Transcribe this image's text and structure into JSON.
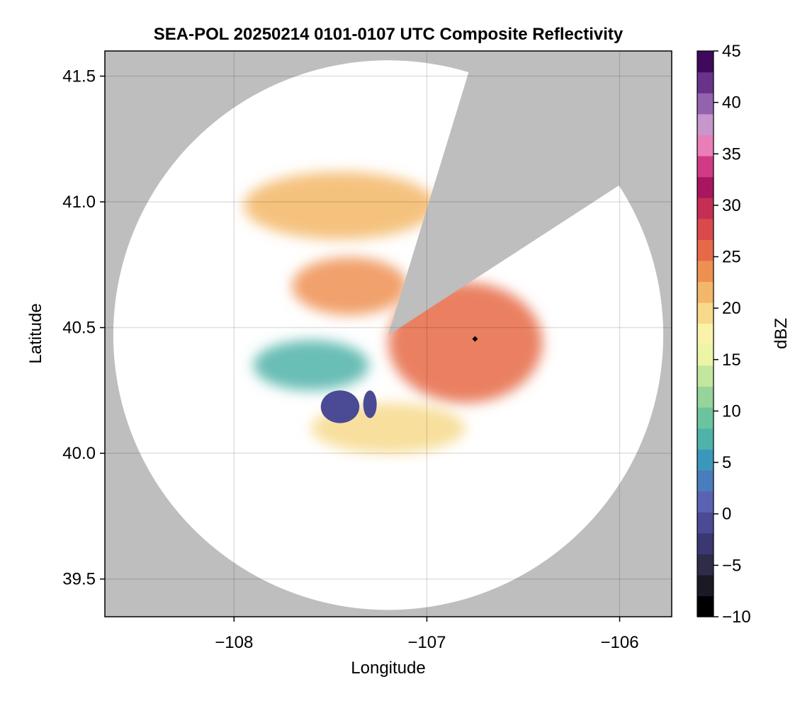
{
  "chart_data": {
    "type": "heatmap",
    "title": "SEA-POL 20250214 0101-0107 UTC Composite Reflectivity",
    "xlabel": "Longitude",
    "ylabel": "Latitude",
    "xlim": [
      -108.67,
      -105.73
    ],
    "ylim": [
      39.35,
      41.6
    ],
    "xticks": [
      -108,
      -107,
      -106
    ],
    "xtick_labels": [
      "−108",
      "−107",
      "−106"
    ],
    "yticks": [
      39.5,
      40.0,
      40.5,
      41.0,
      41.5
    ],
    "ytick_labels": [
      "39.5",
      "40.0",
      "40.5",
      "41.0",
      "41.5"
    ],
    "grid": true,
    "background_color": "#bebebe",
    "radar": {
      "center_lon": -107.2,
      "center_lat": 40.47,
      "range_deg_lat": 1.09,
      "range_deg_lon": 1.43,
      "blocked_sectors_deg_from_north": [
        [
          17,
          57
        ]
      ],
      "site_marker": {
        "lon": -106.75,
        "lat": 40.455
      }
    },
    "colorbar": {
      "label": "dBZ",
      "min": -10,
      "max": 45,
      "ticks": [
        -10,
        -5,
        0,
        5,
        10,
        15,
        20,
        25,
        30,
        35,
        40,
        45
      ],
      "tick_labels": [
        "−10",
        "−5",
        "0",
        "5",
        "10",
        "15",
        "20",
        "25",
        "30",
        "35",
        "40",
        "45"
      ],
      "colors": [
        "#000000",
        "#1b1a24",
        "#2f2c4a",
        "#3b3770",
        "#4a4a95",
        "#5b62b2",
        "#4a7dbd",
        "#3b98bc",
        "#4fb3a9",
        "#6cc49f",
        "#96d49a",
        "#c3e69e",
        "#eaf5a6",
        "#fbf2aa",
        "#f7d98c",
        "#f3b769",
        "#ee9052",
        "#e66a47",
        "#d94a4b",
        "#c52f55",
        "#a91660",
        "#d13b85",
        "#e97fb8",
        "#c796cc",
        "#9364ae",
        "#6a338b",
        "#3f0a5b"
      ]
    },
    "echo_regions": [
      {
        "name": "northern stratiform band",
        "dbz": 22,
        "lon_range": [
          -107.95,
          -106.95
        ],
        "lat_range": [
          40.85,
          41.12
        ]
      },
      {
        "name": "central band",
        "dbz": 24,
        "lon_range": [
          -107.7,
          -107.1
        ],
        "lat_range": [
          40.55,
          40.78
        ]
      },
      {
        "name": "eastern cell region",
        "dbz": 25,
        "lon_range": [
          -107.2,
          -106.4
        ],
        "lat_range": [
          40.2,
          40.68
        ]
      },
      {
        "name": "western weak echoes",
        "dbz": 8,
        "lon_range": [
          -107.9,
          -107.3
        ],
        "lat_range": [
          40.25,
          40.45
        ]
      },
      {
        "name": "southern band",
        "dbz": 20,
        "lon_range": [
          -107.6,
          -106.8
        ],
        "lat_range": [
          40.0,
          40.2
        ]
      },
      {
        "name": "low-reflectivity patch 1",
        "dbz": -1,
        "lon_range": [
          -107.55,
          -107.35
        ],
        "lat_range": [
          40.12,
          40.25
        ]
      },
      {
        "name": "low-reflectivity patch 2",
        "dbz": -1,
        "lon_range": [
          -107.33,
          -107.26
        ],
        "lat_range": [
          40.14,
          40.25
        ]
      }
    ]
  }
}
